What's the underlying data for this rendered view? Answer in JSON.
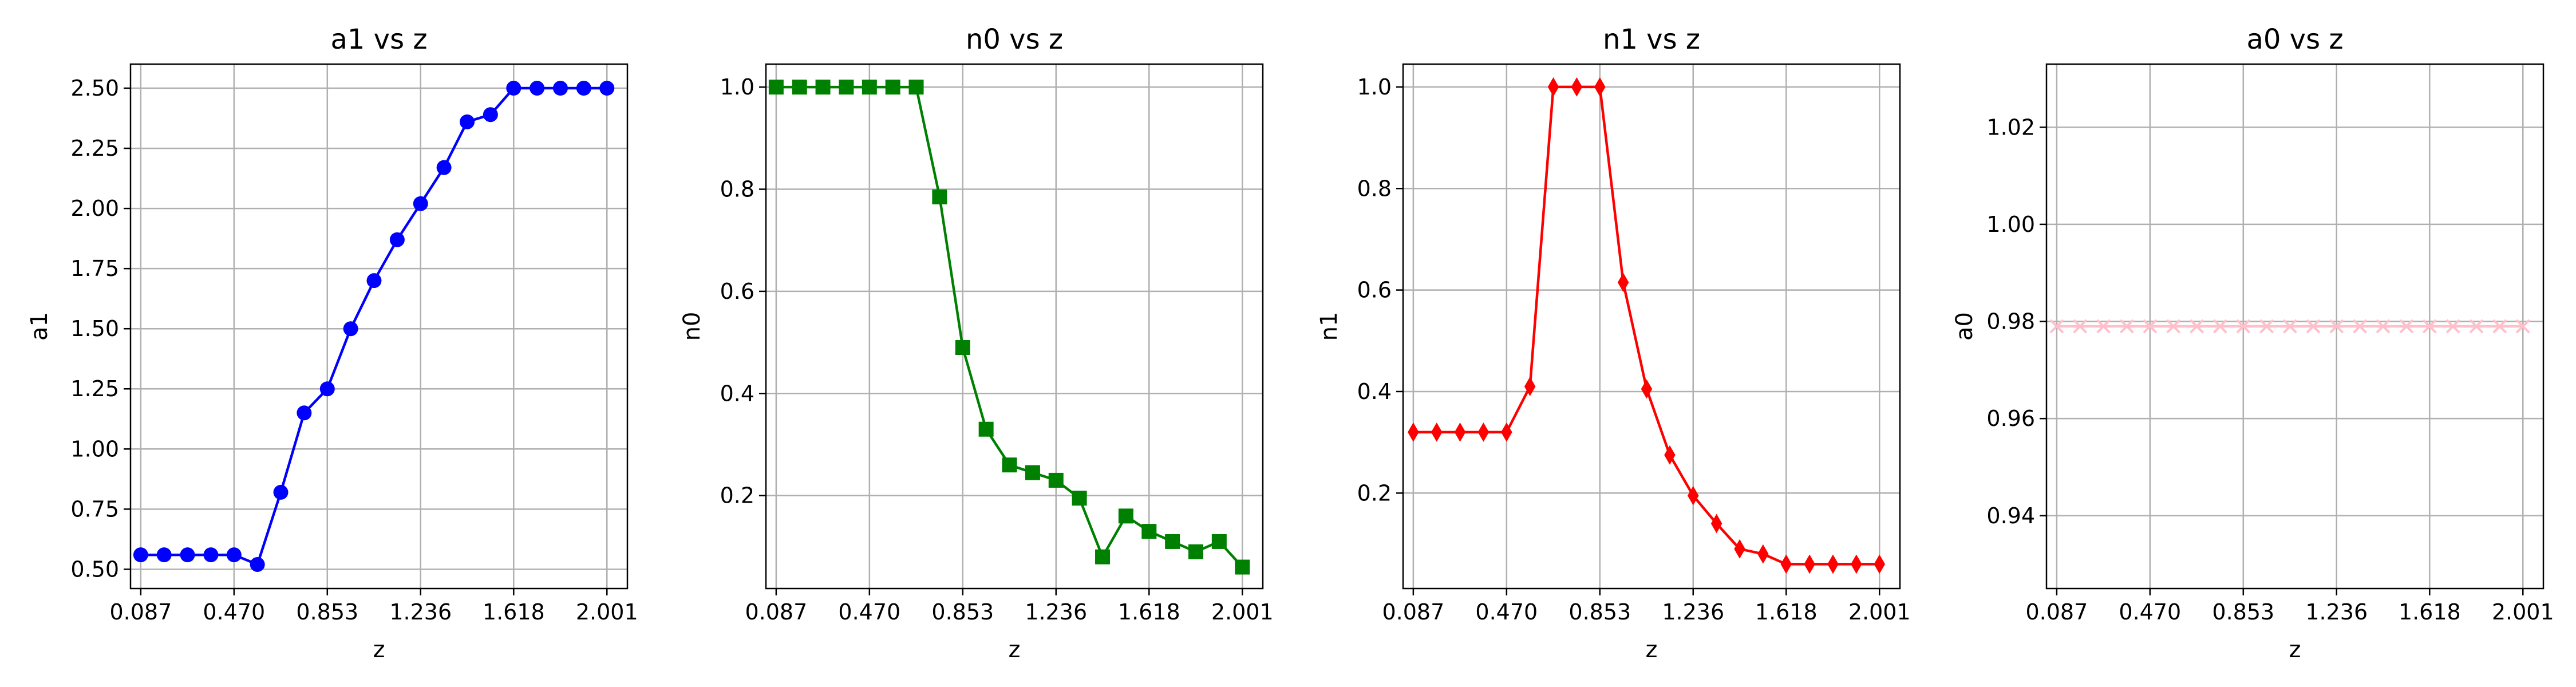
{
  "figure": {
    "colors": {
      "a1": "#0000ff",
      "n0": "#008000",
      "n1": "#ff0000",
      "a0": "#ffc0cb",
      "grid": "#b0b0b0"
    }
  },
  "chart_data": [
    {
      "type": "line",
      "title": "a1 vs z",
      "xlabel": "z",
      "ylabel": "a1",
      "marker": "circle",
      "color": "#0000ff",
      "grid": true,
      "xlim": [
        0.045,
        2.085
      ],
      "ylim": [
        0.42,
        2.6
      ],
      "xticks": [
        "0.087",
        "0.470",
        "0.853",
        "1.236",
        "1.618",
        "2.001"
      ],
      "yticks": [
        "0.50",
        "0.75",
        "1.00",
        "1.25",
        "1.50",
        "1.75",
        "2.00",
        "2.25",
        "2.50"
      ],
      "x": [
        0.087,
        0.183,
        0.279,
        0.375,
        0.47,
        0.566,
        0.662,
        0.758,
        0.853,
        0.949,
        1.045,
        1.14,
        1.236,
        1.332,
        1.427,
        1.523,
        1.618,
        1.714,
        1.81,
        1.906,
        2.001
      ],
      "values": [
        0.56,
        0.56,
        0.56,
        0.56,
        0.56,
        0.52,
        0.82,
        1.15,
        1.25,
        1.5,
        1.7,
        1.87,
        2.02,
        2.17,
        2.36,
        2.39,
        2.5,
        2.5,
        2.5,
        2.5,
        2.5
      ]
    },
    {
      "type": "line",
      "title": "n0 vs z",
      "xlabel": "z",
      "ylabel": "n0",
      "marker": "square",
      "color": "#008000",
      "grid": true,
      "xlim": [
        0.045,
        2.085
      ],
      "ylim": [
        0.018,
        1.045
      ],
      "xticks": [
        "0.087",
        "0.470",
        "0.853",
        "1.236",
        "1.618",
        "2.001"
      ],
      "yticks": [
        "0.2",
        "0.4",
        "0.6",
        "0.8",
        "1.0"
      ],
      "x": [
        0.087,
        0.183,
        0.279,
        0.375,
        0.47,
        0.566,
        0.662,
        0.758,
        0.853,
        0.949,
        1.045,
        1.14,
        1.236,
        1.332,
        1.427,
        1.523,
        1.618,
        1.714,
        1.81,
        1.906,
        2.001
      ],
      "values": [
        1.0,
        1.0,
        1.0,
        1.0,
        1.0,
        1.0,
        1.0,
        0.785,
        0.49,
        0.33,
        0.26,
        0.245,
        0.23,
        0.195,
        0.08,
        0.16,
        0.13,
        0.11,
        0.09,
        0.11,
        0.06
      ]
    },
    {
      "type": "line",
      "title": "n1 vs z",
      "xlabel": "z",
      "ylabel": "n1",
      "marker": "diamond",
      "color": "#ff0000",
      "grid": true,
      "xlim": [
        0.045,
        2.085
      ],
      "ylim": [
        0.012,
        1.045
      ],
      "xticks": [
        "0.087",
        "0.470",
        "0.853",
        "1.236",
        "1.618",
        "2.001"
      ],
      "yticks": [
        "0.2",
        "0.4",
        "0.6",
        "0.8",
        "1.0"
      ],
      "x": [
        0.087,
        0.183,
        0.279,
        0.375,
        0.47,
        0.566,
        0.662,
        0.758,
        0.853,
        0.949,
        1.045,
        1.14,
        1.236,
        1.332,
        1.427,
        1.523,
        1.618,
        1.714,
        1.81,
        1.906,
        2.001
      ],
      "values": [
        0.32,
        0.32,
        0.32,
        0.32,
        0.32,
        0.41,
        1.0,
        1.0,
        1.0,
        0.615,
        0.405,
        0.275,
        0.195,
        0.14,
        0.09,
        0.08,
        0.06,
        0.06,
        0.06,
        0.06,
        0.06
      ]
    },
    {
      "type": "line",
      "title": "a0 vs z",
      "xlabel": "z",
      "ylabel": "a0",
      "marker": "x",
      "color": "#ffc0cb",
      "grid": true,
      "xlim": [
        0.045,
        2.085
      ],
      "ylim": [
        0.925,
        1.033
      ],
      "xticks": [
        "0.087",
        "0.470",
        "0.853",
        "1.236",
        "1.618",
        "2.001"
      ],
      "yticks": [
        "0.94",
        "0.96",
        "0.98",
        "1.00",
        "1.02"
      ],
      "x": [
        0.087,
        0.183,
        0.279,
        0.375,
        0.47,
        0.566,
        0.662,
        0.758,
        0.853,
        0.949,
        1.045,
        1.14,
        1.236,
        1.332,
        1.427,
        1.523,
        1.618,
        1.714,
        1.81,
        1.906,
        2.001
      ],
      "values": [
        0.979,
        0.979,
        0.979,
        0.979,
        0.979,
        0.979,
        0.979,
        0.979,
        0.979,
        0.979,
        0.979,
        0.979,
        0.979,
        0.979,
        0.979,
        0.979,
        0.979,
        0.979,
        0.979,
        0.979,
        0.979
      ]
    }
  ]
}
